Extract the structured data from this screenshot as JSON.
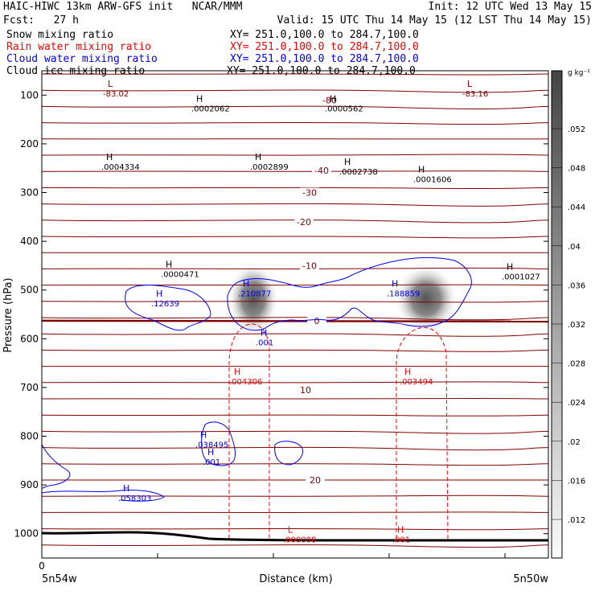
{
  "header": {
    "line1_left": "HAIC-HIWC 13km ARW-GFS init   NCAR/MMM",
    "line1_right": "Init: 12 UTC Wed 13 May 15",
    "fcst": "Fcst:   27 h",
    "valid": "Valid: 15 UTC Thu 14 May 15 (12 LST Thu 14 May 15)",
    "fields": [
      {
        "name": "Snow mixing ratio",
        "xy": "XY= 251.0,100.0 to 284.7,100.0",
        "color": "#000000"
      },
      {
        "name": "Rain water mixing ratio",
        "xy": "XY= 251.0,100.0 to 284.7,100.0",
        "color": "#ff0000"
      },
      {
        "name": "Cloud water mixing ratio",
        "xy": "XY= 251.0,100.0 to 284.7,100.0",
        "color": "#0000ff"
      },
      {
        "name": "Cloud ice mixing ratio",
        "xy": "XY= 251.0,100.0 to 284.7,100.0",
        "color": "#000000"
      }
    ]
  },
  "colors": {
    "temperature": "#800000",
    "zero_isotherm": "#800000",
    "rain": "#ff0000",
    "cloud_water": "#0000ff",
    "terrain": "#000000"
  },
  "chart_data": {
    "type": "cross-section",
    "ylabel": "Pressure (hPa)",
    "xlabel": "Distance (km)",
    "y_ticks": [
      100,
      200,
      300,
      400,
      500,
      600,
      700,
      800,
      900,
      1000
    ],
    "ylim": [
      1050,
      50
    ],
    "x_ticks": [
      "0"
    ],
    "x_endpoint_labels": [
      "5n54w",
      "5n50w"
    ],
    "colorbar": {
      "unit": "g kg⁻¹",
      "ticks": [
        ".052",
        ".048",
        ".044",
        ".04",
        ".036",
        ".032",
        ".028",
        ".024",
        ".02",
        ".016",
        ".012"
      ]
    },
    "isotherm_labels": [
      {
        "text": "-80",
        "p": 110
      },
      {
        "text": "-40",
        "p": 255
      },
      {
        "text": "-30",
        "p": 300
      },
      {
        "text": "-20",
        "p": 360
      },
      {
        "text": "-10",
        "p": 450
      },
      {
        "text": "0",
        "p": 563
      },
      {
        "text": "10",
        "p": 705
      },
      {
        "text": "20",
        "p": 890
      }
    ],
    "extrema": [
      {
        "type": "L",
        "value": "-83.02",
        "color": "#800000",
        "p": 90
      },
      {
        "type": "L",
        "value": "-83.16",
        "color": "#800000",
        "p": 90
      },
      {
        "type": "H",
        "value": ".0002062",
        "color": "#000000",
        "p": 120
      },
      {
        "type": "H",
        "value": ".0000562",
        "color": "#000000",
        "p": 120
      },
      {
        "type": "H",
        "value": ".0004334",
        "color": "#000000",
        "p": 240
      },
      {
        "type": "H",
        "value": ".0002899",
        "color": "#000000",
        "p": 240
      },
      {
        "type": "H",
        "value": ".0002738",
        "color": "#000000",
        "p": 250
      },
      {
        "type": "H",
        "value": ".0001606",
        "color": "#000000",
        "p": 265
      },
      {
        "type": "H",
        "value": ".0000471",
        "color": "#000000",
        "p": 460
      },
      {
        "type": "H",
        "value": ".0001027",
        "color": "#000000",
        "p": 465
      },
      {
        "type": "H",
        "value": ".12639",
        "color": "#0000ff",
        "p": 520
      },
      {
        "type": "H",
        "value": ".210877",
        "color": "#0000ff",
        "p": 500
      },
      {
        "type": "H",
        "value": ".188859",
        "color": "#0000ff",
        "p": 500
      },
      {
        "type": "H",
        "value": ".001",
        "color": "#0000ff",
        "p": 600
      },
      {
        "type": "H",
        "value": ".004306",
        "color": "#ff0000",
        "p": 680
      },
      {
        "type": "H",
        "value": ".003494",
        "color": "#ff0000",
        "p": 680
      },
      {
        "type": "H",
        "value": ".038495",
        "color": "#0000ff",
        "p": 810
      },
      {
        "type": "H",
        "value": ".001",
        "color": "#0000ff",
        "p": 845
      },
      {
        "type": "H",
        "value": ".058303",
        "color": "#0000ff",
        "p": 920
      },
      {
        "type": "L",
        "value": ".000008",
        "color": "#ff0000",
        "p": 1005
      },
      {
        "type": "H",
        "value": ".001",
        "color": "#ff0000",
        "p": 1005
      }
    ]
  }
}
